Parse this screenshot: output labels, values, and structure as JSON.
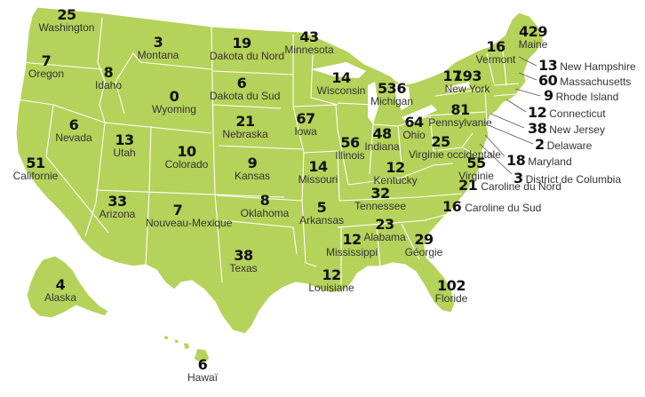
{
  "map": {
    "states": {
      "WA": {
        "value": "25",
        "name": "Washington"
      },
      "OR": {
        "value": "7",
        "name": "Oregon"
      },
      "CA": {
        "value": "51",
        "name": "Californie"
      },
      "NV": {
        "value": "6",
        "name": "Nevada"
      },
      "ID": {
        "value": "8",
        "name": "Idaho"
      },
      "MT": {
        "value": "3",
        "name": "Montana"
      },
      "WY": {
        "value": "0",
        "name": "Wyoming"
      },
      "UT": {
        "value": "13",
        "name": "Utah"
      },
      "AZ": {
        "value": "33",
        "name": "Arizona"
      },
      "CO": {
        "value": "10",
        "name": "Colorado"
      },
      "NM": {
        "value": "7",
        "name": "Nouveau-Mexique"
      },
      "ND": {
        "value": "19",
        "name": "Dakota du Nord"
      },
      "SD": {
        "value": "6",
        "name": "Dakota du Sud"
      },
      "NE": {
        "value": "21",
        "name": "Nebraska"
      },
      "KS": {
        "value": "9",
        "name": "Kansas"
      },
      "OK": {
        "value": "8",
        "name": "Oklahoma"
      },
      "TX": {
        "value": "38",
        "name": "Texas"
      },
      "MN": {
        "value": "43",
        "name": "Minnesota"
      },
      "IA": {
        "value": "67",
        "name": "Iowa"
      },
      "MO": {
        "value": "14",
        "name": "Missouri"
      },
      "AR": {
        "value": "5",
        "name": "Arkansas"
      },
      "LA": {
        "value": "12",
        "name": "Louisiane"
      },
      "WI": {
        "value": "14",
        "name": "Wisconsin"
      },
      "IL": {
        "value": "56",
        "name": "Illinois"
      },
      "MI": {
        "value": "536",
        "name": "Michigan"
      },
      "IN": {
        "value": "48",
        "name": "Indiana"
      },
      "OH": {
        "value": "64",
        "name": "Ohio"
      },
      "KY": {
        "value": "12",
        "name": "Kentucky"
      },
      "TN": {
        "value": "32",
        "name": "Tennessee"
      },
      "MS": {
        "value": "12",
        "name": "Mississippi"
      },
      "AL": {
        "value": "23",
        "name": "Alabama"
      },
      "GA": {
        "value": "29",
        "name": "Géorgie"
      },
      "FL": {
        "value": "102",
        "name": "Floride"
      },
      "SC": {
        "value": "16",
        "name": "Caroline du Sud"
      },
      "NC": {
        "value": "21",
        "name": "Caroline du Nord"
      },
      "VA": {
        "value": "55",
        "name": "Virginie"
      },
      "WV": {
        "value": "25",
        "name": "Virginie occidentale"
      },
      "PA": {
        "value": "81",
        "name": "Pennsylvanie"
      },
      "NY": {
        "value": "193",
        "name": "New York"
      },
      "VT": {
        "value": "16",
        "name": "Vermont"
      },
      "ME": {
        "value": "429",
        "name": "Maine"
      },
      "NH": {
        "value": "13",
        "name": "New Hampshire"
      },
      "MA": {
        "value": "60",
        "name": "Massachusetts"
      },
      "RI": {
        "value": "9",
        "name": "Rhode Island"
      },
      "CT": {
        "value": "12",
        "name": "Connecticut"
      },
      "NJ": {
        "value": "38",
        "name": "New Jersey"
      },
      "DE": {
        "value": "2",
        "name": "Delaware"
      },
      "MD": {
        "value": "18",
        "name": "Maryland"
      },
      "DC": {
        "value": "3",
        "name": "District de Columbia"
      },
      "AK": {
        "value": "4",
        "name": "Alaska"
      },
      "HI": {
        "value": "6",
        "name": "Hawaï"
      }
    },
    "extra_values": {
      "ny_west": "17"
    },
    "colors": {
      "land": "#b5d25a",
      "border": "#ffffff",
      "value_text": "#111111",
      "name_text": "#333333",
      "leader": "#555555"
    }
  }
}
